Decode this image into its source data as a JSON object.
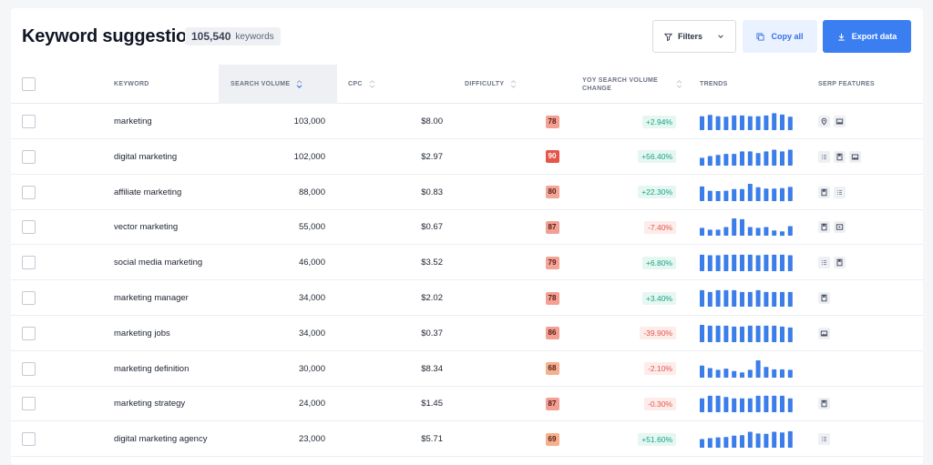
{
  "header": {
    "title": "Keyword suggestions",
    "count": "105,540",
    "count_unit": "keywords",
    "filters_label": "Filters",
    "copy_label": "Copy all",
    "export_label": "Export data"
  },
  "columns": {
    "keyword": "KEYWORD",
    "search_volume": "SEARCH VOLUME",
    "cpc": "CPC",
    "difficulty": "DIFFICULTY",
    "yoy_line1": "YOY SEARCH VOLUME",
    "yoy_line2": "CHANGE",
    "trends": "TRENDS",
    "serp": "SERP FEATURES"
  },
  "colors": {
    "accent": "#3a7ef2",
    "trend_bar": "#3b7de9",
    "positive": "#16a383",
    "negative": "#e2574c"
  },
  "rows": [
    {
      "keyword": "marketing",
      "volume": "103,000",
      "cpc": "$8.00",
      "difficulty": "78",
      "difficulty_color": "#f4a093",
      "yoy": "+2.94%",
      "yoy_sign": "pos",
      "trend": [
        0.8,
        0.88,
        0.8,
        0.78,
        0.85,
        0.85,
        0.8,
        0.8,
        0.85,
        0.98,
        0.9,
        0.78
      ],
      "serp": [
        "location-pin-icon",
        "image-icon"
      ]
    },
    {
      "keyword": "digital marketing",
      "volume": "102,000",
      "cpc": "$2.97",
      "difficulty": "90",
      "difficulty_color": "#e5554a",
      "yoy": "+56.40%",
      "yoy_sign": "pos",
      "trend": [
        0.45,
        0.55,
        0.62,
        0.68,
        0.68,
        0.82,
        0.82,
        0.72,
        0.82,
        0.92,
        0.82,
        0.92
      ],
      "serp": [
        "list-icon",
        "bookmark-icon",
        "image-icon"
      ]
    },
    {
      "keyword": "affiliate marketing",
      "volume": "88,000",
      "cpc": "$0.83",
      "difficulty": "80",
      "difficulty_color": "#f3a597",
      "yoy": "+22.30%",
      "yoy_sign": "pos",
      "trend": [
        0.85,
        0.6,
        0.58,
        0.6,
        0.7,
        0.7,
        1.0,
        0.8,
        0.72,
        0.72,
        0.75,
        0.82
      ],
      "serp": [
        "bookmark-icon",
        "list-icon"
      ]
    },
    {
      "keyword": "vector marketing",
      "volume": "55,000",
      "cpc": "$0.67",
      "difficulty": "87",
      "difficulty_color": "#f2a093",
      "yoy": "-7.40%",
      "yoy_sign": "neg",
      "trend": [
        0.45,
        0.35,
        0.35,
        0.5,
        1.0,
        0.95,
        0.5,
        0.45,
        0.5,
        0.3,
        0.25,
        0.55
      ],
      "serp": [
        "bookmark-icon",
        "video-icon"
      ]
    },
    {
      "keyword": "social media marketing",
      "volume": "46,000",
      "cpc": "$3.52",
      "difficulty": "79",
      "difficulty_color": "#f4a395",
      "yoy": "+6.80%",
      "yoy_sign": "pos",
      "trend": [
        0.95,
        0.92,
        0.92,
        0.95,
        0.95,
        0.95,
        0.95,
        0.92,
        0.95,
        0.95,
        0.95,
        0.92
      ],
      "serp": [
        "list-icon",
        "bookmark-icon"
      ]
    },
    {
      "keyword": "marketing manager",
      "volume": "34,000",
      "cpc": "$2.02",
      "difficulty": "78",
      "difficulty_color": "#f4a093",
      "yoy": "+3.40%",
      "yoy_sign": "pos",
      "trend": [
        0.95,
        0.85,
        0.95,
        0.95,
        0.95,
        0.85,
        0.85,
        0.95,
        0.85,
        0.85,
        0.85,
        0.85
      ],
      "serp": [
        "bookmark-icon"
      ]
    },
    {
      "keyword": "marketing jobs",
      "volume": "34,000",
      "cpc": "$0.37",
      "difficulty": "86",
      "difficulty_color": "#f3a094",
      "yoy": "-39.90%",
      "yoy_sign": "neg",
      "trend": [
        1.0,
        0.95,
        0.95,
        0.95,
        0.9,
        0.9,
        0.95,
        0.95,
        0.95,
        0.95,
        0.9,
        0.85
      ],
      "serp": [
        "image-icon"
      ]
    },
    {
      "keyword": "marketing definition",
      "volume": "30,000",
      "cpc": "$8.34",
      "difficulty": "68",
      "difficulty_color": "#f5b08d",
      "yoy": "-2.10%",
      "yoy_sign": "neg",
      "trend": [
        0.7,
        0.55,
        0.45,
        0.52,
        0.38,
        0.3,
        0.45,
        1.0,
        0.62,
        0.48,
        0.48,
        0.45
      ],
      "serp": []
    },
    {
      "keyword": "marketing strategy",
      "volume": "24,000",
      "cpc": "$1.45",
      "difficulty": "87",
      "difficulty_color": "#f2a093",
      "yoy": "-0.30%",
      "yoy_sign": "neg",
      "trend": [
        0.8,
        0.95,
        0.95,
        0.88,
        0.8,
        0.8,
        0.8,
        0.95,
        0.95,
        0.95,
        0.95,
        0.8
      ],
      "serp": [
        "bookmark-icon"
      ]
    },
    {
      "keyword": "digital marketing agency",
      "volume": "23,000",
      "cpc": "$5.71",
      "difficulty": "69",
      "difficulty_color": "#f5b08d",
      "yoy": "+51.60%",
      "yoy_sign": "pos",
      "trend": [
        0.5,
        0.55,
        0.6,
        0.62,
        0.7,
        0.72,
        0.92,
        0.82,
        0.8,
        0.92,
        0.88,
        0.95
      ],
      "serp": [
        "list-icon"
      ]
    }
  ]
}
